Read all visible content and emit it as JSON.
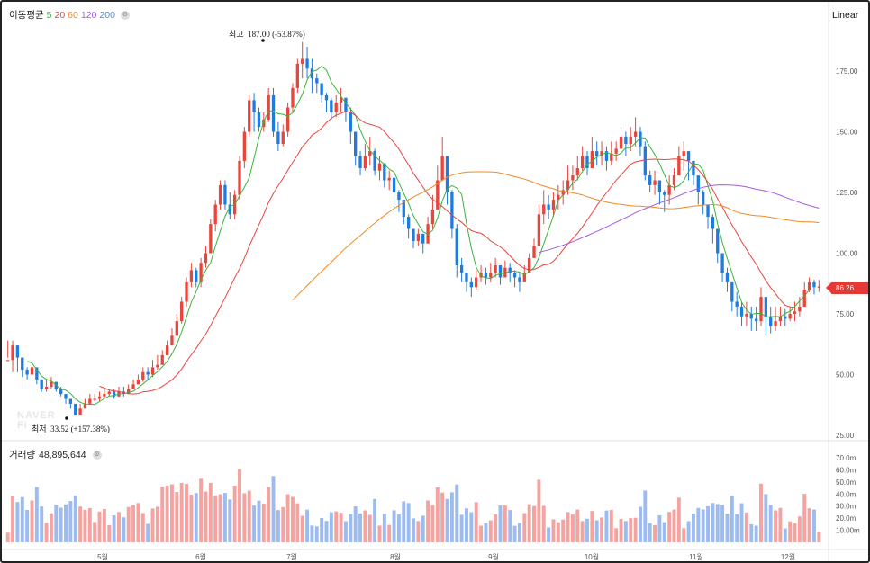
{
  "legend": {
    "ma_title": "이동평균",
    "ma_periods": [
      {
        "label": "5",
        "color": "#3bb33b"
      },
      {
        "label": "20",
        "color": "#e8453c"
      },
      {
        "label": "60",
        "color": "#f08a24"
      },
      {
        "label": "120",
        "color": "#a55ae0"
      },
      {
        "label": "200",
        "color": "#4a90e2"
      }
    ],
    "settings_icon": "gear-icon"
  },
  "scale_button": "Linear",
  "current_price": "86.26",
  "high_label": {
    "title": "최고",
    "value": "187.00 (-53.87%)"
  },
  "low_label": {
    "title": "최저",
    "value": "33.52 (+157.38%)"
  },
  "watermark": {
    "line1": "NAVER",
    "line2": "Fi"
  },
  "volume_legend": {
    "title": "거래량",
    "value": "48,895,644"
  },
  "colors": {
    "up": "#e8453c",
    "down": "#1e7be0",
    "vol_up": "#f4a3a0",
    "vol_down": "#9cbbf0",
    "grid": "#ececec"
  },
  "chart_data": {
    "type": "candlestick",
    "price_axis": {
      "ticks": [
        175,
        150,
        125,
        100,
        75,
        50,
        25
      ],
      "tick_labels": [
        "175.00",
        "150.00",
        "125.00",
        "100.00",
        "75.00",
        "50.00",
        "25.00"
      ],
      "ylim": [
        25,
        187.5
      ]
    },
    "volume_axis": {
      "ticks": [
        70,
        60,
        50,
        40,
        30,
        20,
        10
      ],
      "tick_labels": [
        "70.0m",
        "60.0m",
        "50.0m",
        "40.0m",
        "30.0m",
        "20.0m",
        "10.00m"
      ],
      "ylim": [
        0,
        80
      ]
    },
    "months": [
      "5월",
      "6월",
      "7월",
      "8월",
      "9월",
      "10월",
      "11월",
      "12월"
    ],
    "month_positions": [
      21.4,
      41.7,
      61.2,
      81.2,
      101.5,
      122.1,
      142.3,
      162.7
    ],
    "count": 169,
    "closes": [
      56,
      62,
      57,
      52,
      50,
      53,
      48,
      44,
      45,
      47,
      44,
      42,
      40,
      38,
      33.5,
      36,
      38,
      40,
      40,
      41,
      42,
      43,
      41,
      43,
      42,
      44,
      46,
      48,
      51,
      50,
      53,
      54,
      58,
      62,
      66,
      72,
      80,
      88,
      93,
      88,
      96,
      100,
      112,
      120,
      128,
      120,
      116,
      124,
      138,
      150,
      163,
      158,
      152,
      155,
      165,
      150,
      145,
      150,
      160,
      168,
      178,
      180,
      176,
      172,
      170,
      165,
      163,
      158,
      162,
      164,
      158,
      150,
      140,
      135,
      140,
      142,
      134,
      137,
      130,
      131,
      125,
      122,
      115,
      110,
      105,
      108,
      104,
      112,
      118,
      130,
      140,
      125,
      110,
      95,
      92,
      88,
      86,
      90,
      92,
      90,
      92,
      95,
      90,
      94,
      92,
      90,
      88,
      92,
      98,
      103,
      116,
      120,
      118,
      122,
      124,
      126,
      130,
      132,
      135,
      140,
      135,
      142,
      140,
      142,
      138,
      141,
      143,
      148,
      145,
      148,
      150,
      144,
      132,
      128,
      130,
      125,
      124,
      128,
      132,
      140,
      142,
      138,
      132,
      125,
      120,
      115,
      110,
      100,
      92,
      88,
      80,
      78,
      74,
      75,
      73,
      72,
      82,
      74,
      70,
      72,
      74,
      73,
      75,
      76,
      78,
      85,
      88,
      86,
      86.26
    ],
    "hl": [
      [
        57,
        64
      ],
      [
        51,
        64
      ],
      [
        51,
        59
      ],
      [
        49,
        56
      ],
      [
        48,
        53
      ],
      [
        49,
        54
      ],
      [
        46,
        51
      ],
      [
        43,
        47
      ],
      [
        43,
        48
      ],
      [
        44,
        49
      ],
      [
        43,
        47
      ],
      [
        41,
        45
      ],
      [
        38,
        42
      ],
      [
        36,
        40
      ],
      [
        33.5,
        38
      ],
      [
        34,
        38
      ],
      [
        37,
        40
      ],
      [
        38,
        42
      ],
      [
        39,
        42
      ],
      [
        39,
        43
      ],
      [
        40,
        44
      ],
      [
        41,
        44
      ],
      [
        40,
        44
      ],
      [
        41,
        45
      ],
      [
        41,
        45
      ],
      [
        42,
        46
      ],
      [
        44,
        48
      ],
      [
        46,
        50
      ],
      [
        47,
        53
      ],
      [
        48,
        53
      ],
      [
        49,
        56
      ],
      [
        52,
        58
      ],
      [
        54,
        60
      ],
      [
        58,
        64
      ],
      [
        62,
        69
      ],
      [
        66,
        75
      ],
      [
        71,
        82
      ],
      [
        78,
        90
      ],
      [
        86,
        96
      ],
      [
        86,
        94
      ],
      [
        86,
        98
      ],
      [
        94,
        103
      ],
      [
        100,
        114
      ],
      [
        109,
        122
      ],
      [
        118,
        130
      ],
      [
        118,
        130
      ],
      [
        114,
        125
      ],
      [
        114,
        126
      ],
      [
        122,
        140
      ],
      [
        135,
        152
      ],
      [
        148,
        165
      ],
      [
        150,
        166
      ],
      [
        150,
        160
      ],
      [
        150,
        158
      ],
      [
        154,
        168
      ],
      [
        148,
        168
      ],
      [
        142,
        154
      ],
      [
        144,
        153
      ],
      [
        148,
        162
      ],
      [
        158,
        170
      ],
      [
        166,
        180
      ],
      [
        172,
        187
      ],
      [
        172,
        185
      ],
      [
        166,
        180
      ],
      [
        166,
        174
      ],
      [
        162,
        170
      ],
      [
        158,
        166
      ],
      [
        155,
        164
      ],
      [
        156,
        165
      ],
      [
        158,
        168
      ],
      [
        154,
        164
      ],
      [
        145,
        160
      ],
      [
        136,
        150
      ],
      [
        132,
        142
      ],
      [
        134,
        145
      ],
      [
        136,
        148
      ],
      [
        132,
        143
      ],
      [
        130,
        140
      ],
      [
        127,
        134
      ],
      [
        126,
        134
      ],
      [
        120,
        128
      ],
      [
        117,
        126
      ],
      [
        112,
        120
      ],
      [
        106,
        116
      ],
      [
        102,
        110
      ],
      [
        103,
        110
      ],
      [
        100,
        108
      ],
      [
        104,
        115
      ],
      [
        110,
        124
      ],
      [
        124,
        136
      ],
      [
        130,
        148
      ],
      [
        120,
        140
      ],
      [
        106,
        126
      ],
      [
        90,
        112
      ],
      [
        88,
        98
      ],
      [
        84,
        92
      ],
      [
        82,
        90
      ],
      [
        85,
        93
      ],
      [
        88,
        95
      ],
      [
        87,
        94
      ],
      [
        88,
        96
      ],
      [
        90,
        98
      ],
      [
        87,
        95
      ],
      [
        90,
        97
      ],
      [
        88,
        96
      ],
      [
        86,
        93
      ],
      [
        84,
        92
      ],
      [
        88,
        95
      ],
      [
        92,
        100
      ],
      [
        99,
        106
      ],
      [
        105,
        120
      ],
      [
        112,
        126
      ],
      [
        114,
        124
      ],
      [
        115,
        125
      ],
      [
        118,
        128
      ],
      [
        120,
        130
      ],
      [
        124,
        136
      ],
      [
        126,
        136
      ],
      [
        130,
        140
      ],
      [
        134,
        144
      ],
      [
        132,
        142
      ],
      [
        136,
        148
      ],
      [
        136,
        146
      ],
      [
        136,
        146
      ],
      [
        134,
        144
      ],
      [
        136,
        146
      ],
      [
        138,
        146
      ],
      [
        142,
        152
      ],
      [
        140,
        150
      ],
      [
        142,
        152
      ],
      [
        144,
        156
      ],
      [
        140,
        152
      ],
      [
        130,
        146
      ],
      [
        125,
        134
      ],
      [
        124,
        134
      ],
      [
        120,
        130
      ],
      [
        117,
        126
      ],
      [
        120,
        132
      ],
      [
        126,
        135
      ],
      [
        132,
        144
      ],
      [
        134,
        146
      ],
      [
        130,
        142
      ],
      [
        128,
        138
      ],
      [
        120,
        130
      ],
      [
        116,
        126
      ],
      [
        110,
        120
      ],
      [
        104,
        116
      ],
      [
        96,
        108
      ],
      [
        88,
        100
      ],
      [
        84,
        94
      ],
      [
        76,
        88
      ],
      [
        74,
        84
      ],
      [
        70,
        80
      ],
      [
        70,
        80
      ],
      [
        68,
        78
      ],
      [
        68,
        78
      ],
      [
        70,
        86
      ],
      [
        66,
        78
      ],
      [
        67,
        78
      ],
      [
        68,
        78
      ],
      [
        70,
        78
      ],
      [
        70,
        77
      ],
      [
        72,
        78
      ],
      [
        72,
        80
      ],
      [
        74,
        82
      ],
      [
        78,
        88
      ],
      [
        84,
        90
      ],
      [
        83,
        89
      ],
      [
        84,
        89
      ]
    ],
    "ma5": [
      null,
      null,
      null,
      null,
      55.4,
      54.8,
      52,
      49.4,
      48,
      47.4,
      45.6,
      44,
      43.6,
      42.2,
      40,
      38.6,
      37.9,
      37.8,
      37.7,
      38.9,
      40.2,
      41.2,
      41.4,
      42,
      42.2,
      42.6,
      43.2,
      44.6,
      46.2,
      47.8,
      49.6,
      51.2,
      53.2,
      55.4,
      58.6,
      62.4,
      67.6,
      73.6,
      79.8,
      84.2,
      89,
      93,
      96,
      102.8,
      109.2,
      115.2,
      119.2,
      120,
      123.6,
      127.2,
      131,
      139.2,
      147.4,
      154.2,
      158.6,
      158.6,
      157.4,
      157.2,
      156.4,
      157.8,
      161.4,
      165.4,
      171.4,
      174.8,
      175.4,
      177,
      175.4,
      170.4,
      167.6,
      164.6,
      161.8,
      159.4,
      156.8,
      150.8,
      146.2,
      142.2,
      140,
      138.2,
      136.6,
      134.6,
      133.4,
      129,
      124.6,
      120.6,
      115.4,
      112,
      108.8,
      107.8,
      109.4,
      114.4,
      121.6,
      126.4,
      127.8,
      126.8,
      124.2,
      112.2,
      102.2,
      94.2,
      90.6,
      89.8,
      89.6,
      90.8,
      91.6,
      91.8,
      92.6,
      92.6,
      92.2,
      91.2,
      92.4,
      94,
      98.2,
      103.8,
      109.6,
      115.4,
      121.8,
      124,
      126,
      128.8,
      130.4,
      133.6,
      136.6,
      137.8,
      139.6,
      140.6,
      141.4,
      140.8,
      140.2,
      141.2,
      143.4,
      143.4,
      145.4,
      147.6,
      147.4,
      143.8,
      140.6,
      136.8,
      132.2,
      127.8,
      127,
      127.8,
      129.8,
      133.6,
      136.8,
      136.6,
      134.2,
      127.8,
      121.6,
      112.2,
      104.4,
      97.8,
      91.8,
      85.6,
      79.8,
      76.6,
      74.8,
      75.2,
      75.2,
      73.8,
      73.8,
      74,
      73.8,
      75.2,
      76,
      78,
      80.4,
      82.4,
      84.8
    ],
    "ma20": [
      null,
      null,
      null,
      null,
      null,
      null,
      null,
      null,
      null,
      null,
      null,
      null,
      null,
      null,
      null,
      null,
      null,
      null,
      null,
      45.2,
      44.5,
      43.6,
      43.3,
      43,
      42.6,
      42.1,
      42,
      42.2,
      42.9,
      43.1,
      43.5,
      44.1,
      45.1,
      46.5,
      47.8,
      49.8,
      52.3,
      55.3,
      58.2,
      60.8,
      63.9,
      66.7,
      70.2,
      74,
      77.8,
      81.6,
      85.8,
      89.9,
      93.6,
      98,
      102.9,
      107.3,
      111.6,
      116,
      120.9,
      124.5,
      127.8,
      130.9,
      134.2,
      137.4,
      140.4,
      143.8,
      146,
      148.6,
      149.8,
      151.5,
      153.8,
      155.6,
      156.8,
      157.6,
      158.4,
      158,
      156.7,
      155,
      153.6,
      153.1,
      152.5,
      151.9,
      150.1,
      147.7,
      145.5,
      142.9,
      139.5,
      136.4,
      132.9,
      130.1,
      127.2,
      124.3,
      122.2,
      120.7,
      119.2,
      117.4,
      115.7,
      114.1,
      112.7,
      110.9,
      109.3,
      108.6,
      108.2,
      106.9,
      105,
      103.9,
      102.6,
      101,
      98.9,
      96.8,
      95,
      93.7,
      93.1,
      93.3,
      94.2,
      95.2,
      95.4,
      96.7,
      98.9,
      101.4,
      103.9,
      106,
      108.2,
      110.8,
      113.7,
      116.5,
      119.6,
      122.4,
      124.8,
      127.4,
      130.1,
      132.1,
      134.4,
      136.6,
      137.6,
      138,
      138.4,
      138.6,
      138.7,
      138.6,
      138.5,
      138.6,
      138.8,
      138.7,
      138.4,
      137.9,
      136.3,
      134.4,
      132,
      129.3,
      126.2,
      122.4,
      119,
      115.2,
      111.6,
      108.3,
      104.7,
      101.6,
      98.4,
      95.4,
      92,
      88.7,
      85.8,
      83.3,
      80.7,
      78.5,
      77.9,
      77.6
    ]
  }
}
